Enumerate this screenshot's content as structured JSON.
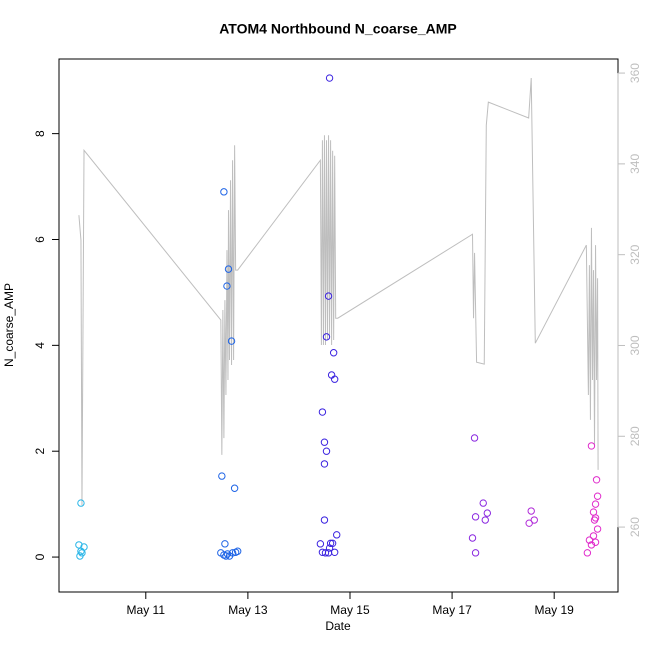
{
  "chart_data": {
    "type": "scatter",
    "title": "ATOM4 Northbound N_coarse_AMP",
    "x_label": "Date",
    "y_label": "N_coarse_AMP",
    "xlim": [
      9.3,
      20.25
    ],
    "ylim": [
      -0.66,
      9.41
    ],
    "y2lim": [
      245.7,
      363.1
    ],
    "xticks": [
      {
        "value": 11,
        "label": "May 11"
      },
      {
        "value": 13,
        "label": "May 13"
      },
      {
        "value": 15,
        "label": "May 15"
      },
      {
        "value": 17,
        "label": "May 17"
      },
      {
        "value": 19,
        "label": "May 19"
      }
    ],
    "yticks": [
      0,
      2,
      4,
      6,
      8
    ],
    "y2ticks": [
      260,
      280,
      300,
      320,
      340,
      360
    ],
    "y2_color": "#bebebe",
    "series": [
      {
        "color": "#29b6e8",
        "x": [
          9.73,
          9.69,
          9.79,
          9.73,
          9.75,
          9.71
        ],
        "values": [
          1.02,
          0.23,
          0.19,
          0.11,
          0.08,
          0.02
        ]
      },
      {
        "color": "#1e64e6",
        "x": [
          12.53,
          12.62,
          12.59,
          12.68,
          12.49,
          12.74,
          12.55,
          12.47,
          12.53,
          12.6,
          12.64,
          12.7,
          12.76,
          12.8,
          12.57
        ],
        "values": [
          6.9,
          5.44,
          5.12,
          4.08,
          1.53,
          1.3,
          0.25,
          0.08,
          0.04,
          0.06,
          0.02,
          0.08,
          0.09,
          0.11,
          0.02
        ]
      },
      {
        "color": "#3a22e0",
        "x": [
          14.6,
          14.58,
          14.54,
          14.68,
          14.64,
          14.7,
          14.46,
          14.5,
          14.54,
          14.5,
          14.5,
          14.74,
          14.42,
          14.62,
          14.66,
          14.6,
          14.46,
          14.52,
          14.58,
          14.7
        ],
        "values": [
          9.05,
          4.93,
          4.16,
          3.86,
          3.44,
          3.36,
          2.74,
          2.17,
          2.0,
          1.76,
          0.7,
          0.42,
          0.25,
          0.26,
          0.26,
          0.17,
          0.09,
          0.08,
          0.08,
          0.09
        ]
      },
      {
        "color": "#8a28e0",
        "x": [
          17.44,
          17.4,
          17.46,
          17.61,
          17.69,
          17.65,
          17.46
        ],
        "values": [
          2.25,
          0.36,
          0.76,
          1.02,
          0.83,
          0.7,
          0.08
        ]
      },
      {
        "color": "#b02ad8",
        "x": [
          18.55,
          18.61,
          18.51
        ],
        "values": [
          0.87,
          0.7,
          0.64
        ]
      },
      {
        "color": "#e02ccc",
        "x": [
          19.73,
          19.83,
          19.85,
          19.81,
          19.77,
          19.81,
          19.79,
          19.85,
          19.69,
          19.77,
          19.81,
          19.73,
          19.65
        ],
        "values": [
          2.1,
          1.46,
          1.15,
          1.0,
          0.85,
          0.74,
          0.7,
          0.53,
          0.32,
          0.4,
          0.28,
          0.23,
          0.08
        ]
      }
    ],
    "line": {
      "axis": "y2",
      "color": "#bebebe",
      "x": [
        9.69,
        9.73,
        9.75,
        9.79,
        12.47,
        12.49,
        12.51,
        12.53,
        12.55,
        12.57,
        12.59,
        12.61,
        12.62,
        12.64,
        12.66,
        12.68,
        12.7,
        12.72,
        12.74,
        12.76,
        12.8,
        14.42,
        14.44,
        14.46,
        14.48,
        14.5,
        14.52,
        14.54,
        14.56,
        14.58,
        14.6,
        14.62,
        14.64,
        14.66,
        14.68,
        14.7,
        14.72,
        14.76,
        17.4,
        17.42,
        17.44,
        17.48,
        17.63,
        17.67,
        17.71,
        18.5,
        18.55,
        18.63,
        19.63,
        19.67,
        19.69,
        19.71,
        19.73,
        19.75,
        19.77,
        19.79,
        19.81,
        19.83,
        19.85,
        19.86
      ],
      "values": [
        328.7,
        323.2,
        264.8,
        343.0,
        305.6,
        275.9,
        307.8,
        279.6,
        310.0,
        289.1,
        321.0,
        292.4,
        329.8,
        296.8,
        336.4,
        295.7,
        340.8,
        296.8,
        344.1,
        316.6,
        316.6,
        340.8,
        300.1,
        345.2,
        300.1,
        346.3,
        300.1,
        345.2,
        301.2,
        346.3,
        302.3,
        345.2,
        300.1,
        342.9,
        301.2,
        341.8,
        306.0,
        306.0,
        324.5,
        306.0,
        320.4,
        296.3,
        295.9,
        348.5,
        353.6,
        350.1,
        358.9,
        300.5,
        322.1,
        289.1,
        317.7,
        283.6,
        325.9,
        292.4,
        316.6,
        278.1,
        322.1,
        292.4,
        314.8,
        272.6
      ]
    }
  }
}
